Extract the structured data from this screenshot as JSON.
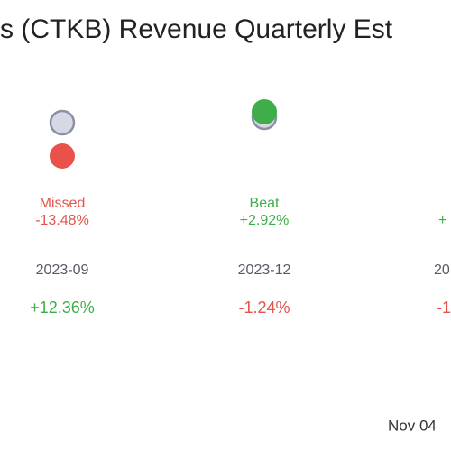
{
  "title": "s (CTKB) Revenue Quarterly Est",
  "columns": [
    {
      "result": "Missed",
      "surprise": "-13.48%",
      "period": "2023-09",
      "change": "+12.36%"
    },
    {
      "result": "Beat",
      "surprise": "+2.92%",
      "period": "2023-12",
      "change": "-1.24%"
    },
    {
      "surprise": "+",
      "period": "20",
      "change": "-1"
    }
  ],
  "footer": "Nov 04"
}
